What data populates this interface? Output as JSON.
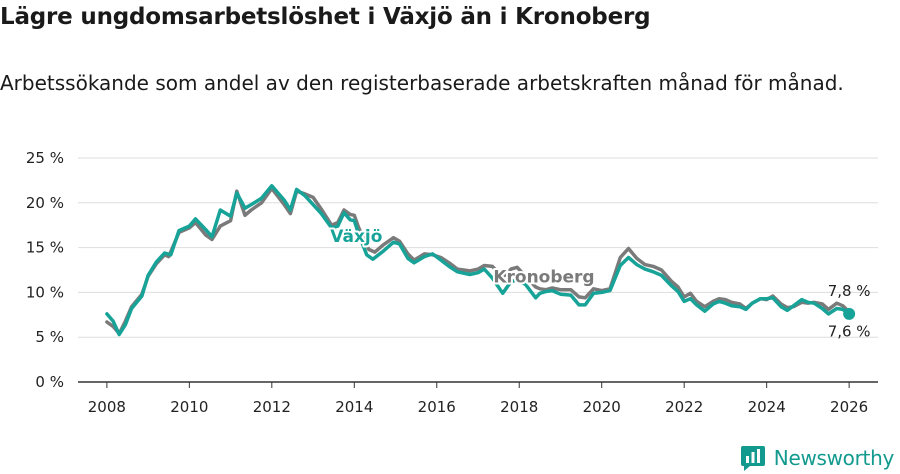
{
  "title": "Lägre ungdomsarbetslöshet i Växjö än i Kronoberg",
  "subtitle": "Arbetssökande som andel av den registerbaserade arbetskraften månad för månad.",
  "brand": {
    "name": "Newsworthy"
  },
  "colors": {
    "vaxjo": "#17a398",
    "kronoberg": "#7a7a7a",
    "grid": "#dddddd",
    "axis": "#333333"
  },
  "chart_data": {
    "type": "line",
    "title": "Lägre ungdomsarbetslöshet i Växjö än i Kronoberg",
    "xlabel": "",
    "ylabel": "",
    "ylim": [
      0,
      25
    ],
    "xlim": [
      2007.3,
      2026.7
    ],
    "y_ticks": [
      0,
      5,
      10,
      15,
      20,
      25
    ],
    "y_tick_labels": [
      "0 %",
      "5 %",
      "10 %",
      "15 %",
      "20 %",
      "25 %"
    ],
    "x_ticks": [
      2008,
      2010,
      2012,
      2014,
      2016,
      2018,
      2020,
      2022,
      2024,
      2026
    ],
    "x_tick_labels": [
      "2008",
      "2010",
      "2012",
      "2014",
      "2016",
      "2018",
      "2020",
      "2022",
      "2024",
      "2026"
    ],
    "grid": true,
    "series": [
      {
        "name": "Kronoberg",
        "label": "Kronoberg",
        "end_label": "7,8 %",
        "points": [
          [
            2008.0,
            6.7
          ],
          [
            2008.15,
            6.2
          ],
          [
            2008.3,
            5.4
          ],
          [
            2008.45,
            6.8
          ],
          [
            2008.6,
            8.4
          ],
          [
            2008.85,
            9.8
          ],
          [
            2009.0,
            11.8
          ],
          [
            2009.2,
            13.2
          ],
          [
            2009.4,
            14.2
          ],
          [
            2009.5,
            14.0
          ],
          [
            2009.75,
            16.7
          ],
          [
            2010.0,
            17.2
          ],
          [
            2010.15,
            17.8
          ],
          [
            2010.4,
            16.4
          ],
          [
            2010.55,
            15.9
          ],
          [
            2010.75,
            17.4
          ],
          [
            2011.0,
            18.0
          ],
          [
            2011.15,
            21.3
          ],
          [
            2011.35,
            18.6
          ],
          [
            2011.5,
            19.2
          ],
          [
            2011.75,
            20.0
          ],
          [
            2012.0,
            21.6
          ],
          [
            2012.3,
            19.8
          ],
          [
            2012.45,
            18.8
          ],
          [
            2012.6,
            21.3
          ],
          [
            2012.8,
            21.0
          ],
          [
            2013.0,
            20.6
          ],
          [
            2013.2,
            19.3
          ],
          [
            2013.45,
            17.5
          ],
          [
            2013.6,
            17.8
          ],
          [
            2013.75,
            19.2
          ],
          [
            2013.9,
            18.7
          ],
          [
            2014.0,
            18.6
          ],
          [
            2014.1,
            17.3
          ],
          [
            2014.35,
            14.8
          ],
          [
            2014.5,
            14.5
          ],
          [
            2014.7,
            15.3
          ],
          [
            2014.95,
            16.1
          ],
          [
            2015.1,
            15.7
          ],
          [
            2015.3,
            14.3
          ],
          [
            2015.45,
            13.6
          ],
          [
            2015.7,
            14.3
          ],
          [
            2015.9,
            14.2
          ],
          [
            2016.1,
            13.9
          ],
          [
            2016.3,
            13.3
          ],
          [
            2016.5,
            12.6
          ],
          [
            2016.8,
            12.4
          ],
          [
            2017.0,
            12.6
          ],
          [
            2017.15,
            13.0
          ],
          [
            2017.35,
            12.9
          ],
          [
            2017.6,
            11.7
          ],
          [
            2017.8,
            12.6
          ],
          [
            2017.95,
            12.8
          ],
          [
            2018.15,
            11.8
          ],
          [
            2018.4,
            10.6
          ],
          [
            2018.5,
            10.4
          ],
          [
            2018.65,
            10.3
          ],
          [
            2018.8,
            10.5
          ],
          [
            2019.0,
            10.3
          ],
          [
            2019.25,
            10.3
          ],
          [
            2019.45,
            9.5
          ],
          [
            2019.6,
            9.4
          ],
          [
            2019.8,
            10.4
          ],
          [
            2020.0,
            10.2
          ],
          [
            2020.2,
            10.4
          ],
          [
            2020.45,
            13.9
          ],
          [
            2020.65,
            14.9
          ],
          [
            2020.85,
            13.8
          ],
          [
            2021.05,
            13.1
          ],
          [
            2021.25,
            12.9
          ],
          [
            2021.45,
            12.5
          ],
          [
            2021.7,
            11.2
          ],
          [
            2021.85,
            10.6
          ],
          [
            2022.0,
            9.5
          ],
          [
            2022.15,
            9.9
          ],
          [
            2022.3,
            9.0
          ],
          [
            2022.5,
            8.4
          ],
          [
            2022.7,
            9.0
          ],
          [
            2022.85,
            9.3
          ],
          [
            2023.0,
            9.2
          ],
          [
            2023.15,
            8.9
          ],
          [
            2023.35,
            8.7
          ],
          [
            2023.5,
            8.2
          ],
          [
            2023.65,
            8.8
          ],
          [
            2023.85,
            9.3
          ],
          [
            2024.0,
            9.2
          ],
          [
            2024.15,
            9.6
          ],
          [
            2024.35,
            8.7
          ],
          [
            2024.5,
            8.3
          ],
          [
            2024.65,
            8.4
          ],
          [
            2024.85,
            8.9
          ],
          [
            2025.0,
            8.8
          ],
          [
            2025.15,
            8.9
          ],
          [
            2025.35,
            8.7
          ],
          [
            2025.5,
            8.1
          ],
          [
            2025.7,
            8.8
          ],
          [
            2025.85,
            8.5
          ],
          [
            2026.0,
            7.8
          ]
        ]
      },
      {
        "name": "Växjö",
        "label": "Växjö",
        "end_label": "7,6 %",
        "points": [
          [
            2008.0,
            7.6
          ],
          [
            2008.15,
            6.8
          ],
          [
            2008.3,
            5.3
          ],
          [
            2008.45,
            6.4
          ],
          [
            2008.6,
            8.2
          ],
          [
            2008.85,
            9.6
          ],
          [
            2009.0,
            11.9
          ],
          [
            2009.2,
            13.4
          ],
          [
            2009.4,
            14.4
          ],
          [
            2009.55,
            14.2
          ],
          [
            2009.75,
            16.9
          ],
          [
            2010.0,
            17.4
          ],
          [
            2010.15,
            18.2
          ],
          [
            2010.4,
            17.0
          ],
          [
            2010.55,
            16.2
          ],
          [
            2010.75,
            19.2
          ],
          [
            2011.0,
            18.5
          ],
          [
            2011.15,
            21.1
          ],
          [
            2011.35,
            19.4
          ],
          [
            2011.5,
            19.8
          ],
          [
            2011.75,
            20.5
          ],
          [
            2012.0,
            21.9
          ],
          [
            2012.3,
            20.3
          ],
          [
            2012.45,
            19.2
          ],
          [
            2012.6,
            21.5
          ],
          [
            2012.8,
            20.8
          ],
          [
            2013.0,
            19.8
          ],
          [
            2013.2,
            18.8
          ],
          [
            2013.45,
            17.2
          ],
          [
            2013.6,
            17.4
          ],
          [
            2013.75,
            18.9
          ],
          [
            2013.9,
            18.1
          ],
          [
            2014.0,
            18.0
          ],
          [
            2014.1,
            16.6
          ],
          [
            2014.3,
            14.2
          ],
          [
            2014.45,
            13.7
          ],
          [
            2014.7,
            14.6
          ],
          [
            2014.95,
            15.6
          ],
          [
            2015.1,
            15.4
          ],
          [
            2015.3,
            13.8
          ],
          [
            2015.45,
            13.3
          ],
          [
            2015.7,
            14.0
          ],
          [
            2015.9,
            14.3
          ],
          [
            2016.1,
            13.6
          ],
          [
            2016.3,
            12.9
          ],
          [
            2016.5,
            12.3
          ],
          [
            2016.8,
            12.0
          ],
          [
            2017.0,
            12.2
          ],
          [
            2017.15,
            12.6
          ],
          [
            2017.35,
            11.6
          ],
          [
            2017.6,
            9.9
          ],
          [
            2017.8,
            11.2
          ],
          [
            2017.95,
            11.4
          ],
          [
            2018.15,
            10.9
          ],
          [
            2018.4,
            9.4
          ],
          [
            2018.5,
            9.9
          ],
          [
            2018.65,
            10.1
          ],
          [
            2018.8,
            10.2
          ],
          [
            2019.0,
            9.8
          ],
          [
            2019.25,
            9.7
          ],
          [
            2019.45,
            8.6
          ],
          [
            2019.6,
            8.6
          ],
          [
            2019.8,
            9.9
          ],
          [
            2020.0,
            10.0
          ],
          [
            2020.2,
            10.2
          ],
          [
            2020.45,
            13.0
          ],
          [
            2020.65,
            13.9
          ],
          [
            2020.85,
            13.1
          ],
          [
            2021.05,
            12.6
          ],
          [
            2021.25,
            12.3
          ],
          [
            2021.45,
            11.9
          ],
          [
            2021.7,
            10.7
          ],
          [
            2021.85,
            10.1
          ],
          [
            2022.0,
            9.0
          ],
          [
            2022.15,
            9.3
          ],
          [
            2022.3,
            8.6
          ],
          [
            2022.5,
            7.9
          ],
          [
            2022.7,
            8.7
          ],
          [
            2022.85,
            9.0
          ],
          [
            2023.0,
            8.8
          ],
          [
            2023.15,
            8.5
          ],
          [
            2023.35,
            8.4
          ],
          [
            2023.5,
            8.1
          ],
          [
            2023.65,
            8.8
          ],
          [
            2023.85,
            9.3
          ],
          [
            2024.0,
            9.3
          ],
          [
            2024.15,
            9.4
          ],
          [
            2024.35,
            8.4
          ],
          [
            2024.5,
            8.0
          ],
          [
            2024.65,
            8.5
          ],
          [
            2024.85,
            9.2
          ],
          [
            2025.0,
            8.9
          ],
          [
            2025.15,
            8.8
          ],
          [
            2025.35,
            8.2
          ],
          [
            2025.5,
            7.6
          ],
          [
            2025.7,
            8.2
          ],
          [
            2025.85,
            8.1
          ],
          [
            2026.0,
            7.6
          ]
        ]
      }
    ],
    "annotations": [
      {
        "text": "Växjö",
        "series": "Växjö",
        "at_x": 2014.05,
        "at_y": 15.6
      },
      {
        "text": "Kronoberg",
        "series": "Kronoberg",
        "at_x": 2018.6,
        "at_y": 11.1
      }
    ]
  }
}
